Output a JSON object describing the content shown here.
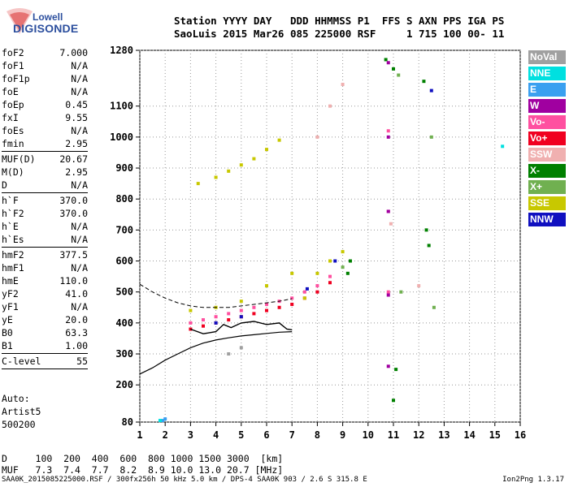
{
  "logo": {
    "line1": "Lowell",
    "line2": "DIGISONDE"
  },
  "header": {
    "line1": "Station YYYY DAY   DDD HHMMSS P1  FFS S AXN PPS IGA PS",
    "line2": "SaoLuis 2015 Mar26 085 225000 RSF     1 715 100 00- 11"
  },
  "params": {
    "group1": [
      {
        "name": "foF2",
        "value": "7.000"
      },
      {
        "name": "foF1",
        "value": "N/A"
      },
      {
        "name": "foF1p",
        "value": "N/A"
      },
      {
        "name": "foE",
        "value": "N/A"
      },
      {
        "name": "foEp",
        "value": "0.45"
      },
      {
        "name": "fxI",
        "value": "9.55"
      },
      {
        "name": "foEs",
        "value": "N/A"
      },
      {
        "name": "fmin",
        "value": "2.95"
      }
    ],
    "group2": [
      {
        "name": "MUF(D)",
        "value": "20.67"
      },
      {
        "name": "M(D)",
        "value": "2.95"
      },
      {
        "name": "D",
        "value": "N/A"
      }
    ],
    "group3": [
      {
        "name": "h`F",
        "value": "370.0"
      },
      {
        "name": "h`F2",
        "value": "370.0"
      },
      {
        "name": "h`E",
        "value": "N/A"
      },
      {
        "name": "h`Es",
        "value": "N/A"
      }
    ],
    "group4": [
      {
        "name": "hmF2",
        "value": "377.5"
      },
      {
        "name": "hmF1",
        "value": "N/A"
      },
      {
        "name": "hmE",
        "value": "110.0"
      },
      {
        "name": "yF2",
        "value": "41.0"
      },
      {
        "name": "yF1",
        "value": "N/A"
      },
      {
        "name": "yE",
        "value": "20.0"
      },
      {
        "name": "B0",
        "value": "63.3"
      },
      {
        "name": "B1",
        "value": "1.00"
      }
    ],
    "group5": [
      {
        "name": "C-level",
        "value": "55"
      }
    ]
  },
  "artist": {
    "label": "Auto:",
    "name": "Artist5",
    "version": "500200"
  },
  "legend": [
    {
      "label": "NoVal",
      "color": "#a0a0a0"
    },
    {
      "label": "NNE",
      "color": "#00e0e0"
    },
    {
      "label": "E",
      "color": "#3aa0f0"
    },
    {
      "label": "W",
      "color": "#a000a0"
    },
    {
      "label": "Vo-",
      "color": "#ff50a0"
    },
    {
      "label": "Vo+",
      "color": "#f00020"
    },
    {
      "label": "SSW",
      "color": "#f0b0b0"
    },
    {
      "label": "X-",
      "color": "#008000"
    },
    {
      "label": "X+",
      "color": "#70b050"
    },
    {
      "label": "SSE",
      "color": "#c8c800"
    },
    {
      "label": "NNW",
      "color": "#1010c0"
    }
  ],
  "muf_table": {
    "d_label": "D",
    "d_values": [
      "100",
      "200",
      "400",
      "600",
      "800",
      "1000",
      "1500",
      "3000",
      "[km]"
    ],
    "muf_label": "MUF",
    "muf_values": [
      "7.3",
      "7.4",
      "7.7",
      "8.2",
      "8.9",
      "10.0",
      "13.0",
      "20.7",
      "[MHz]"
    ]
  },
  "footer": {
    "text": "SAA0K_2015085225000.RSF / 300fx256h 50 kHz 5.0 km / DPS-4 SAA0K 903 / 2.6 S 315.8 E",
    "version": "Ion2Png 1.3.17"
  },
  "chart_data": {
    "type": "scatter",
    "title": "",
    "xlabel": "",
    "ylabel": "",
    "xlim": [
      1,
      16
    ],
    "ylim": [
      80,
      1280
    ],
    "x_ticks": [
      1,
      2,
      3,
      4,
      5,
      6,
      7,
      8,
      9,
      10,
      11,
      12,
      13,
      14,
      15,
      16
    ],
    "y_ticks": [
      80,
      200,
      300,
      400,
      500,
      600,
      700,
      800,
      900,
      1000,
      1100,
      1280
    ],
    "grid": true,
    "grid_style": "dotted",
    "series": [
      {
        "name": "X-",
        "color": "#008000",
        "points": [
          [
            9.2,
            560
          ],
          [
            9.3,
            600
          ],
          [
            10.7,
            1250
          ],
          [
            11.0,
            1220
          ],
          [
            12.2,
            1180
          ],
          [
            12.3,
            700
          ],
          [
            12.4,
            650
          ],
          [
            11.0,
            150
          ],
          [
            11.1,
            250
          ]
        ]
      },
      {
        "name": "X+",
        "color": "#70b050",
        "points": [
          [
            9.0,
            580
          ],
          [
            11.2,
            1200
          ],
          [
            12.5,
            1000
          ],
          [
            12.6,
            450
          ],
          [
            11.3,
            500
          ]
        ]
      },
      {
        "name": "Vo-",
        "color": "#ff50a0",
        "points": [
          [
            3.0,
            400
          ],
          [
            3.5,
            410
          ],
          [
            4.0,
            420
          ],
          [
            4.5,
            430
          ],
          [
            5.0,
            440
          ],
          [
            5.5,
            450
          ],
          [
            6.0,
            460
          ],
          [
            6.5,
            470
          ],
          [
            7.0,
            480
          ],
          [
            7.5,
            500
          ],
          [
            8.0,
            520
          ],
          [
            8.5,
            550
          ],
          [
            10.8,
            1020
          ],
          [
            10.8,
            760
          ],
          [
            10.8,
            500
          ]
        ]
      },
      {
        "name": "Vo+",
        "color": "#f00020",
        "points": [
          [
            3.0,
            380
          ],
          [
            3.5,
            390
          ],
          [
            4.0,
            400
          ],
          [
            4.5,
            410
          ],
          [
            5.0,
            420
          ],
          [
            5.5,
            430
          ],
          [
            6.0,
            440
          ],
          [
            6.5,
            450
          ],
          [
            7.0,
            460
          ],
          [
            7.5,
            480
          ],
          [
            8.0,
            500
          ],
          [
            8.5,
            530
          ]
        ]
      },
      {
        "name": "SSE",
        "color": "#c8c800",
        "points": [
          [
            3.3,
            850
          ],
          [
            4.0,
            870
          ],
          [
            4.5,
            890
          ],
          [
            5.0,
            910
          ],
          [
            5.5,
            930
          ],
          [
            6.0,
            960
          ],
          [
            6.5,
            990
          ],
          [
            7.5,
            480
          ],
          [
            8.0,
            560
          ],
          [
            8.5,
            600
          ],
          [
            9.0,
            630
          ],
          [
            3.0,
            440
          ],
          [
            4.0,
            450
          ],
          [
            5.0,
            470
          ],
          [
            6.0,
            520
          ],
          [
            7.0,
            560
          ]
        ]
      },
      {
        "name": "W",
        "color": "#a000a0",
        "points": [
          [
            10.8,
            1000
          ],
          [
            10.8,
            760
          ],
          [
            10.8,
            490
          ],
          [
            10.8,
            260
          ],
          [
            10.8,
            1240
          ]
        ]
      },
      {
        "name": "NNW",
        "color": "#1010c0",
        "points": [
          [
            7.6,
            510
          ],
          [
            8.7,
            600
          ],
          [
            12.5,
            1150
          ],
          [
            4.0,
            400
          ],
          [
            5.0,
            420
          ]
        ]
      },
      {
        "name": "E",
        "color": "#3aa0f0",
        "points": [
          [
            2.0,
            90
          ],
          [
            1.9,
            85
          ]
        ]
      },
      {
        "name": "NNE",
        "color": "#00e0e0",
        "points": [
          [
            15.3,
            970
          ],
          [
            1.8,
            85
          ]
        ]
      },
      {
        "name": "SSW",
        "color": "#f0b0b0",
        "points": [
          [
            8.0,
            1000
          ],
          [
            8.5,
            1100
          ],
          [
            9.0,
            1170
          ],
          [
            10.9,
            720
          ],
          [
            12.0,
            520
          ]
        ]
      },
      {
        "name": "NoVal",
        "color": "#a0a0a0",
        "points": [
          [
            4.5,
            300
          ],
          [
            5.0,
            320
          ]
        ]
      }
    ],
    "profile_solid": [
      [
        1.0,
        235
      ],
      [
        1.5,
        255
      ],
      [
        2.0,
        280
      ],
      [
        2.5,
        300
      ],
      [
        3.0,
        320
      ],
      [
        3.5,
        335
      ],
      [
        4.0,
        345
      ],
      [
        4.5,
        352
      ],
      [
        5.0,
        358
      ],
      [
        5.5,
        362
      ],
      [
        6.0,
        366
      ],
      [
        6.5,
        370
      ],
      [
        7.0,
        372
      ]
    ],
    "profile_dashed": [
      [
        1.0,
        525
      ],
      [
        1.5,
        500
      ],
      [
        2.0,
        480
      ],
      [
        2.5,
        465
      ],
      [
        3.0,
        455
      ],
      [
        3.5,
        450
      ],
      [
        4.0,
        450
      ],
      [
        4.5,
        450
      ],
      [
        5.0,
        455
      ],
      [
        5.5,
        460
      ],
      [
        6.0,
        465
      ],
      [
        6.5,
        470
      ],
      [
        7.0,
        478
      ]
    ],
    "trace": [
      [
        3.0,
        380
      ],
      [
        3.5,
        365
      ],
      [
        4.0,
        372
      ],
      [
        4.3,
        395
      ],
      [
        4.6,
        385
      ],
      [
        5.0,
        400
      ],
      [
        5.5,
        405
      ],
      [
        6.0,
        395
      ],
      [
        6.5,
        400
      ],
      [
        6.8,
        380
      ],
      [
        7.0,
        378
      ]
    ]
  }
}
